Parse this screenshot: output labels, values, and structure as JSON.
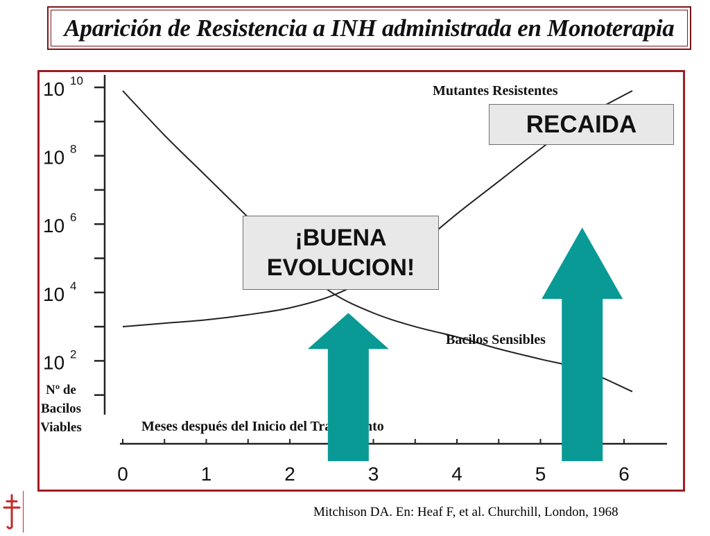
{
  "title": "Aparición de Resistencia a INH administrada en Monoterapia",
  "citation": "Mitchison DA. En: Heaf F, et al. Churchill, London, 1968",
  "callouts": {
    "recaida": "RECAIDA",
    "buena_line1": "¡BUENA",
    "buena_line2": "EVOLUCION!"
  },
  "logo": {
    "icon": "cross-of-lorraine-icon",
    "color": "#c62828"
  },
  "colors": {
    "frame": "#a01c22",
    "arrow": "#0a9a96",
    "line": "#222222"
  },
  "chart_data": {
    "type": "line",
    "xlabel": "Meses después del Inicio del Tratamiento",
    "ylabel": "Nº de Bacilos Viables",
    "ylabel_lines": [
      "Nº de",
      "Bacilos",
      "Viables"
    ],
    "y_scale": "log10",
    "xlim": [
      0,
      6.2
    ],
    "ylim_exponent": [
      0,
      10
    ],
    "x_ticks": [
      0,
      1,
      2,
      3,
      4,
      5,
      6
    ],
    "x_tick_labels": [
      "0",
      "1",
      "2",
      "3",
      "4",
      "5",
      "6"
    ],
    "y_ticks_exponent": [
      10,
      8,
      6,
      4,
      2
    ],
    "y_tick_labels": [
      {
        "base": "10",
        "exp": "10"
      },
      {
        "base": "10",
        "exp": "8"
      },
      {
        "base": "10",
        "exp": "6"
      },
      {
        "base": "10",
        "exp": "4"
      },
      {
        "base": "10",
        "exp": "2"
      }
    ],
    "grid": false,
    "series": [
      {
        "name": "Mutantes Resistentes",
        "x": [
          0,
          0.5,
          1,
          1.5,
          2,
          2.5,
          3,
          3.5,
          4,
          4.5,
          5,
          5.5,
          6.1
        ],
        "log10_y": [
          3.0,
          3.1,
          3.2,
          3.35,
          3.55,
          3.9,
          4.5,
          5.3,
          6.3,
          7.25,
          8.2,
          9.1,
          9.9
        ]
      },
      {
        "name": "Bacilos Sensibles",
        "x": [
          0,
          0.5,
          1,
          1.5,
          2,
          2.5,
          3,
          3.5,
          4,
          4.5,
          5,
          5.5,
          6.1
        ],
        "log10_y": [
          9.9,
          8.6,
          7.4,
          6.2,
          5.0,
          4.0,
          3.4,
          3.0,
          2.7,
          2.35,
          2.05,
          1.75,
          1.1
        ]
      }
    ],
    "arrows": [
      {
        "name": "buena-evolucion-arrow",
        "x": 2.7,
        "log10_y_top": 3.4,
        "log10_y_bottom": -1.0
      },
      {
        "name": "recaida-arrow",
        "x": 5.5,
        "log10_y_top": 5.9,
        "log10_y_bottom": -1.0
      }
    ]
  }
}
